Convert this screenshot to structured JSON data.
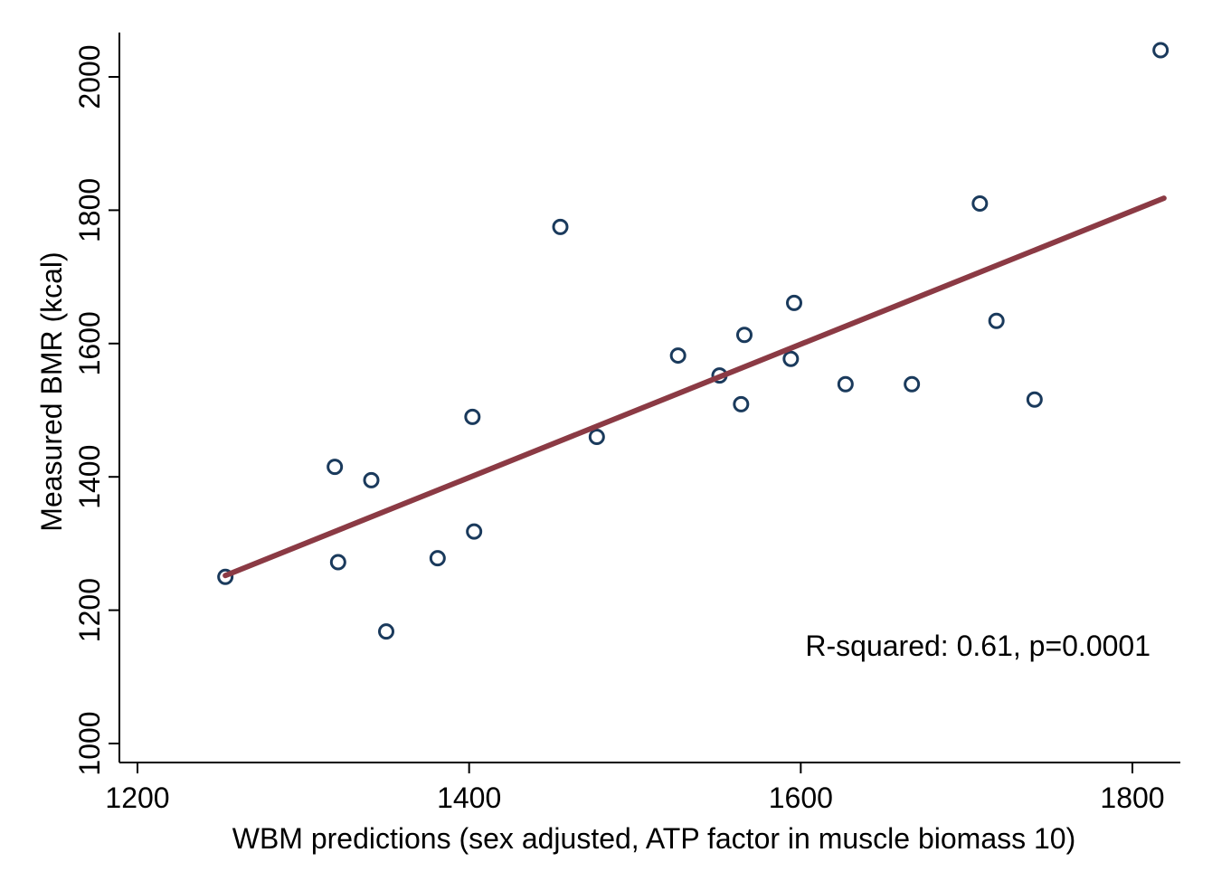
{
  "chart_data": {
    "type": "scatter",
    "xlabel": "WBM predictions (sex adjusted, ATP factor in muscle biomass 10)",
    "ylabel": "Measured BMR (kcal)",
    "xlim": [
      1190,
      1830
    ],
    "ylim": [
      960,
      2070
    ],
    "x_ticks": [
      1200,
      1400,
      1600,
      1800
    ],
    "y_ticks": [
      1000,
      1200,
      1400,
      1600,
      1800,
      2000
    ],
    "x_tick_labels": [
      "1200",
      "1400",
      "1600",
      "1800"
    ],
    "y_tick_labels": [
      "1000",
      "1200",
      "1400",
      "1600",
      "1800",
      "2000"
    ],
    "grid": false,
    "points": [
      {
        "x": 1253,
        "y": 1250
      },
      {
        "x": 1319,
        "y": 1415
      },
      {
        "x": 1321,
        "y": 1272
      },
      {
        "x": 1341,
        "y": 1395
      },
      {
        "x": 1350,
        "y": 1168
      },
      {
        "x": 1381,
        "y": 1278
      },
      {
        "x": 1402,
        "y": 1490
      },
      {
        "x": 1403,
        "y": 1318
      },
      {
        "x": 1455,
        "y": 1775
      },
      {
        "x": 1477,
        "y": 1460
      },
      {
        "x": 1526,
        "y": 1582
      },
      {
        "x": 1551,
        "y": 1552
      },
      {
        "x": 1564,
        "y": 1509
      },
      {
        "x": 1566,
        "y": 1613
      },
      {
        "x": 1594,
        "y": 1577
      },
      {
        "x": 1596,
        "y": 1661
      },
      {
        "x": 1627,
        "y": 1539
      },
      {
        "x": 1667,
        "y": 1539
      },
      {
        "x": 1708,
        "y": 1810
      },
      {
        "x": 1718,
        "y": 1634
      },
      {
        "x": 1741,
        "y": 1516
      },
      {
        "x": 1817,
        "y": 2040
      }
    ],
    "fit_line": {
      "x1": 1253,
      "y1": 1252,
      "x2": 1819,
      "y2": 1818
    },
    "annotation": "R-squared: 0.61, p=0.0001",
    "colors": {
      "marker": "#1a3a5c",
      "fit_line": "#8b3a44",
      "axis": "#000000"
    }
  }
}
